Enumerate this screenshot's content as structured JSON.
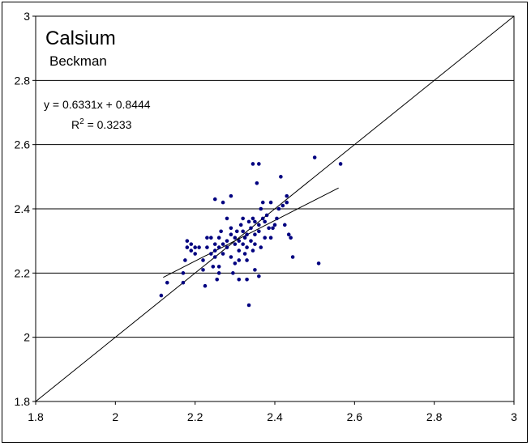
{
  "chart_data": {
    "type": "scatter",
    "title": "Calsium",
    "subtitle": "Beckman",
    "equation": "y = 0.6331x + 0.8444",
    "r_squared_label": "R",
    "r_squared_sup": "2",
    "r_squared_value": " = 0.3233",
    "xlim": [
      1.8,
      3
    ],
    "ylim": [
      1.8,
      3
    ],
    "x_ticks": [
      "1.8",
      "2",
      "2.2",
      "2.4",
      "2.6",
      "2.8",
      "3"
    ],
    "y_ticks": [
      "1.8",
      "2",
      "2.2",
      "2.4",
      "2.6",
      "2.8",
      "3"
    ],
    "grid": "horizontal",
    "marker_color": "#000080",
    "identity_line": {
      "x": [
        1.8,
        3
      ],
      "y": [
        1.8,
        3
      ]
    },
    "trendline": {
      "slope": 0.6331,
      "intercept": 0.8444,
      "x_range": [
        2.12,
        2.56
      ]
    },
    "series": [
      {
        "points": [
          [
            2.115,
            2.13
          ],
          [
            2.13,
            2.17
          ],
          [
            2.17,
            2.17
          ],
          [
            2.17,
            2.2
          ],
          [
            2.175,
            2.24
          ],
          [
            2.18,
            2.28
          ],
          [
            2.19,
            2.29
          ],
          [
            2.18,
            2.3
          ],
          [
            2.19,
            2.27
          ],
          [
            2.2,
            2.26
          ],
          [
            2.2,
            2.28
          ],
          [
            2.21,
            2.28
          ],
          [
            2.22,
            2.24
          ],
          [
            2.22,
            2.21
          ],
          [
            2.225,
            2.16
          ],
          [
            2.23,
            2.28
          ],
          [
            2.23,
            2.31
          ],
          [
            2.24,
            2.26
          ],
          [
            2.24,
            2.31
          ],
          [
            2.245,
            2.22
          ],
          [
            2.25,
            2.25
          ],
          [
            2.25,
            2.27
          ],
          [
            2.25,
            2.29
          ],
          [
            2.25,
            2.43
          ],
          [
            2.255,
            2.18
          ],
          [
            2.26,
            2.2
          ],
          [
            2.26,
            2.22
          ],
          [
            2.26,
            2.28
          ],
          [
            2.26,
            2.31
          ],
          [
            2.265,
            2.33
          ],
          [
            2.27,
            2.26
          ],
          [
            2.27,
            2.29
          ],
          [
            2.27,
            2.42
          ],
          [
            2.28,
            2.28
          ],
          [
            2.28,
            2.3
          ],
          [
            2.28,
            2.37
          ],
          [
            2.29,
            2.32
          ],
          [
            2.29,
            2.34
          ],
          [
            2.29,
            2.25
          ],
          [
            2.29,
            2.44
          ],
          [
            2.295,
            2.2
          ],
          [
            2.3,
            2.23
          ],
          [
            2.3,
            2.29
          ],
          [
            2.3,
            2.31
          ],
          [
            2.305,
            2.33
          ],
          [
            2.31,
            2.18
          ],
          [
            2.31,
            2.24
          ],
          [
            2.31,
            2.27
          ],
          [
            2.31,
            2.3
          ],
          [
            2.315,
            2.35
          ],
          [
            2.32,
            2.33
          ],
          [
            2.32,
            2.37
          ],
          [
            2.32,
            2.29
          ],
          [
            2.325,
            2.26
          ],
          [
            2.325,
            2.31
          ],
          [
            2.33,
            2.18
          ],
          [
            2.33,
            2.24
          ],
          [
            2.33,
            2.28
          ],
          [
            2.33,
            2.32
          ],
          [
            2.335,
            2.1
          ],
          [
            2.335,
            2.36
          ],
          [
            2.34,
            2.3
          ],
          [
            2.34,
            2.34
          ],
          [
            2.345,
            2.37
          ],
          [
            2.345,
            2.27
          ],
          [
            2.345,
            2.54
          ],
          [
            2.35,
            2.21
          ],
          [
            2.35,
            2.29
          ],
          [
            2.35,
            2.32
          ],
          [
            2.35,
            2.36
          ],
          [
            2.355,
            2.48
          ],
          [
            2.36,
            2.19
          ],
          [
            2.36,
            2.33
          ],
          [
            2.36,
            2.35
          ],
          [
            2.36,
            2.54
          ],
          [
            2.365,
            2.28
          ],
          [
            2.365,
            2.4
          ],
          [
            2.37,
            2.37
          ],
          [
            2.37,
            2.42
          ],
          [
            2.375,
            2.36
          ],
          [
            2.375,
            2.31
          ],
          [
            2.38,
            2.38
          ],
          [
            2.385,
            2.34
          ],
          [
            2.39,
            2.31
          ],
          [
            2.39,
            2.42
          ],
          [
            2.395,
            2.34
          ],
          [
            2.4,
            2.35
          ],
          [
            2.405,
            2.37
          ],
          [
            2.41,
            2.4
          ],
          [
            2.415,
            2.5
          ],
          [
            2.42,
            2.41
          ],
          [
            2.425,
            2.35
          ],
          [
            2.43,
            2.42
          ],
          [
            2.43,
            2.44
          ],
          [
            2.435,
            2.32
          ],
          [
            2.44,
            2.31
          ],
          [
            2.445,
            2.25
          ],
          [
            2.5,
            2.56
          ],
          [
            2.51,
            2.23
          ],
          [
            2.565,
            2.54
          ]
        ]
      }
    ]
  }
}
